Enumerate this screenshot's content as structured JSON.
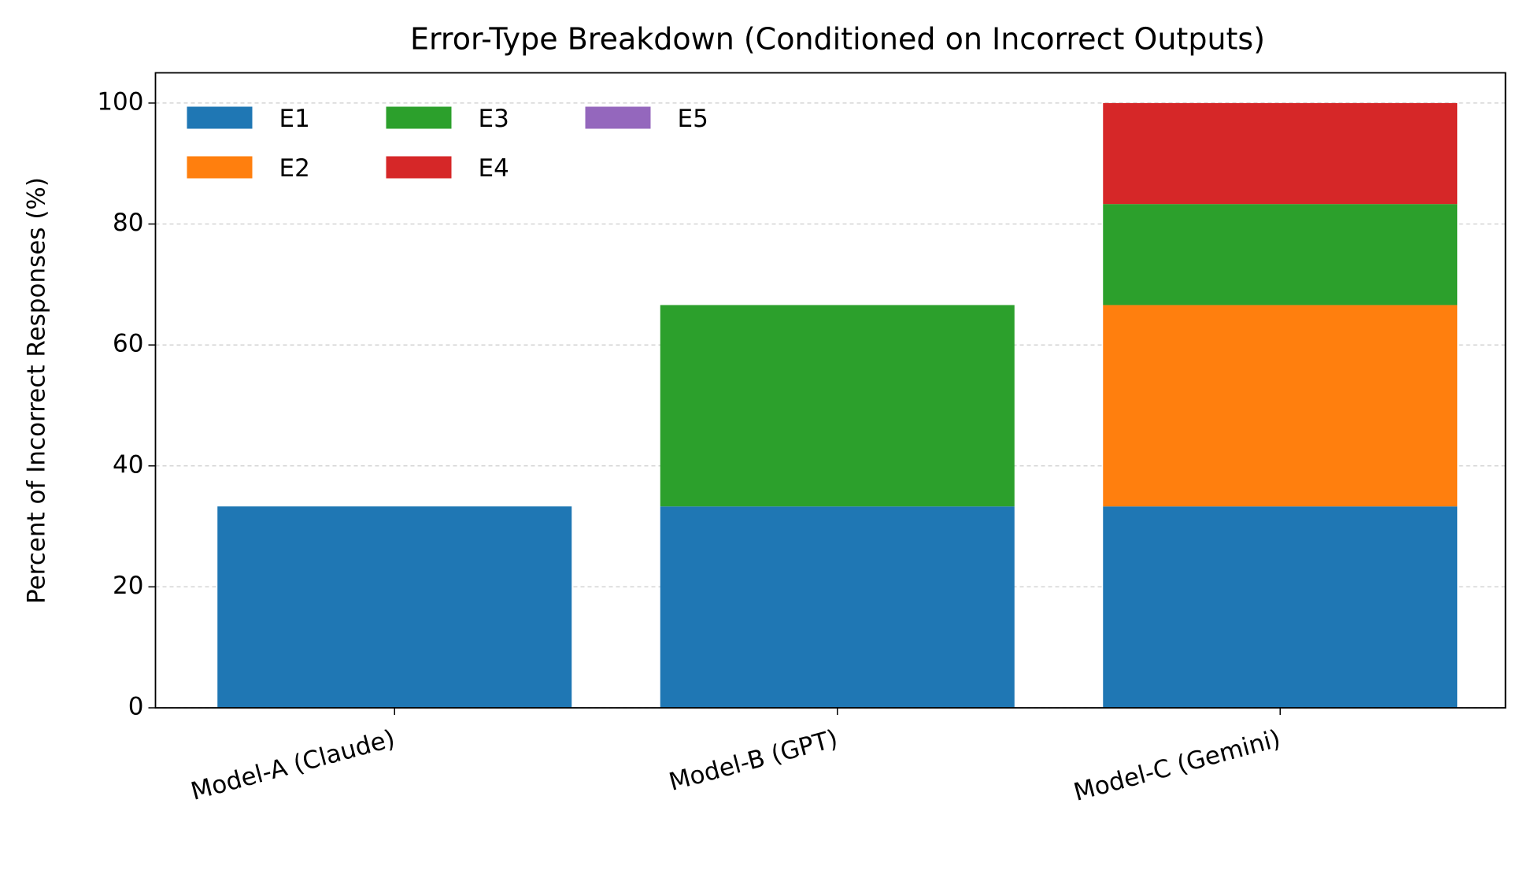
{
  "chart_data": {
    "type": "stacked-bar",
    "title": "Error-Type Breakdown (Conditioned on Incorrect Outputs)",
    "y_label": "Percent of Incorrect Responses (%)",
    "categories": [
      "Model-A (Claude)",
      "Model-B (GPT)",
      "Model-C (Gemini)"
    ],
    "series": [
      {
        "name": "E1",
        "color": "#1f77b4",
        "values": [
          33.3,
          33.3,
          33.3
        ]
      },
      {
        "name": "E2",
        "color": "#ff7f0e",
        "values": [
          0,
          0,
          33.3
        ]
      },
      {
        "name": "E3",
        "color": "#2ca02c",
        "values": [
          0,
          33.3,
          16.7
        ]
      },
      {
        "name": "E4",
        "color": "#d62728",
        "values": [
          0,
          0,
          16.7
        ]
      },
      {
        "name": "E5",
        "color": "#9467bd",
        "values": [
          0,
          0,
          0
        ]
      }
    ],
    "ylim": [
      0,
      105
    ],
    "yticks": [
      0,
      20,
      40,
      60,
      80,
      100
    ],
    "grid": true,
    "legend": "upper left"
  }
}
